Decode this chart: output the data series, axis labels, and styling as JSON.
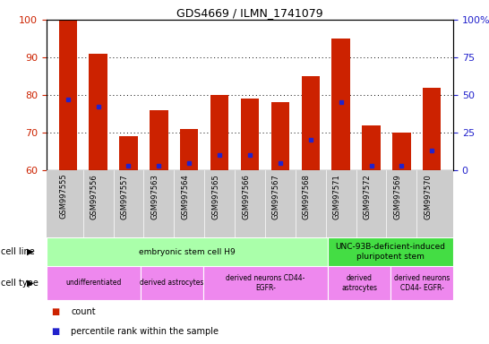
{
  "title": "GDS4669 / ILMN_1741079",
  "samples": [
    "GSM997555",
    "GSM997556",
    "GSM997557",
    "GSM997563",
    "GSM997564",
    "GSM997565",
    "GSM997566",
    "GSM997567",
    "GSM997568",
    "GSM997571",
    "GSM997572",
    "GSM997569",
    "GSM997570"
  ],
  "count_values": [
    100,
    91,
    69,
    76,
    71,
    80,
    79,
    78,
    85,
    95,
    72,
    70,
    82
  ],
  "percentile_values": [
    47,
    42,
    3,
    3,
    5,
    10,
    10,
    5,
    20,
    45,
    3,
    3,
    13
  ],
  "ylim_left": [
    60,
    100
  ],
  "ylim_right": [
    0,
    100
  ],
  "yticks_left": [
    60,
    70,
    80,
    90,
    100
  ],
  "yticks_right": [
    0,
    25,
    50,
    75,
    100
  ],
  "ytick_labels_right": [
    "0",
    "25",
    "50",
    "75",
    "100%"
  ],
  "bar_color": "#cc2200",
  "dot_color": "#2222cc",
  "background_color": "#ffffff",
  "tick_label_color_left": "#cc2200",
  "tick_label_color_right": "#2222cc",
  "cell_line_groups": [
    {
      "label": "embryonic stem cell H9",
      "start": 0,
      "end": 9,
      "color": "#aaffaa"
    },
    {
      "label": "UNC-93B-deficient-induced\npluripotent stem",
      "start": 9,
      "end": 13,
      "color": "#44dd44"
    }
  ],
  "cell_type_groups": [
    {
      "label": "undifferentiated",
      "start": 0,
      "end": 3,
      "color": "#ee88ee"
    },
    {
      "label": "derived astrocytes",
      "start": 3,
      "end": 5,
      "color": "#ee88ee"
    },
    {
      "label": "derived neurons CD44-\nEGFR-",
      "start": 5,
      "end": 9,
      "color": "#ee88ee"
    },
    {
      "label": "derived\nastrocytes",
      "start": 9,
      "end": 11,
      "color": "#ee88ee"
    },
    {
      "label": "derived neurons\nCD44- EGFR-",
      "start": 11,
      "end": 13,
      "color": "#ee88ee"
    }
  ],
  "legend_count_color": "#cc2200",
  "legend_pct_color": "#2222cc",
  "xticklabel_bg": "#cccccc"
}
